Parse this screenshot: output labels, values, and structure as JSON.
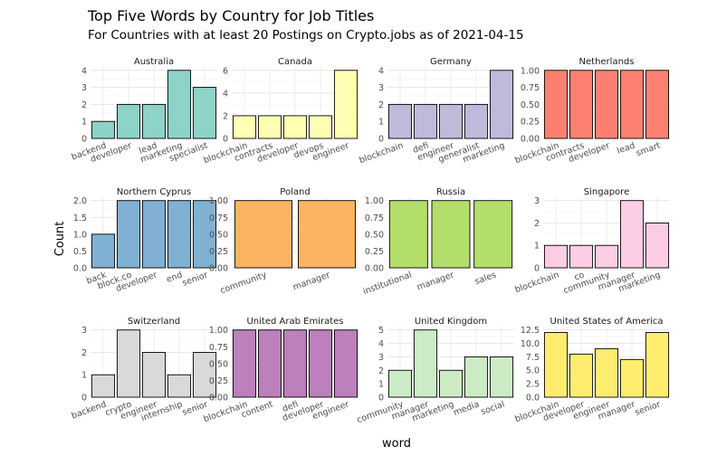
{
  "title": "Top Five Words by Country for Job Titles",
  "subtitle": "For Countries with at least 20 Postings on Crypto.jobs as of 2021-04-15",
  "chart_data": {
    "type": "bar",
    "xlabel": "word",
    "ylabel": "Count",
    "grid": true,
    "facets": [
      {
        "country": "Australia",
        "color": "#8DD3C7",
        "yticks": [
          0,
          1,
          2,
          3,
          4
        ],
        "ylim": [
          0,
          4.2
        ],
        "categories": [
          "backend",
          "developer",
          "lead",
          "marketing",
          "specialist"
        ],
        "values": [
          1,
          2,
          2,
          4,
          3
        ]
      },
      {
        "country": "Canada",
        "color": "#FFFFB3",
        "yticks": [
          0,
          2,
          4,
          6
        ],
        "ylim": [
          0,
          6.3
        ],
        "categories": [
          "blockchain",
          "contracts",
          "developer",
          "devops",
          "engineer"
        ],
        "values": [
          2,
          2,
          2,
          2,
          6
        ]
      },
      {
        "country": "Germany",
        "color": "#BEBADA",
        "yticks": [
          0,
          1,
          2,
          3,
          4
        ],
        "ylim": [
          0,
          4.2
        ],
        "categories": [
          "blockchain",
          "defi",
          "engineer",
          "generalist",
          "marketing"
        ],
        "values": [
          2,
          2,
          2,
          2,
          4
        ]
      },
      {
        "country": "Netherlands",
        "color": "#FB8072",
        "yticks": [
          "0.00",
          "0.25",
          "0.50",
          "0.75",
          "1.00"
        ],
        "ylim": [
          0,
          1.05
        ],
        "categories": [
          "blockchain",
          "contracts",
          "developer",
          "lead",
          "smart"
        ],
        "values": [
          1,
          1,
          1,
          1,
          1
        ]
      },
      {
        "country": "Northern Cyprus",
        "color": "#80B1D3",
        "yticks": [
          "0.0",
          "0.5",
          "1.0",
          "1.5",
          "2.0"
        ],
        "ylim": [
          0,
          2.1
        ],
        "categories": [
          "back",
          "block.co",
          "developer",
          "end",
          "senior"
        ],
        "values": [
          1,
          2,
          2,
          2,
          2
        ]
      },
      {
        "country": "Poland",
        "color": "#FDB462",
        "yticks": [
          "0.00",
          "0.25",
          "0.50",
          "0.75",
          "1.00"
        ],
        "ylim": [
          0,
          1.05
        ],
        "categories": [
          "community",
          "manager"
        ],
        "values": [
          1,
          1
        ]
      },
      {
        "country": "Russia",
        "color": "#B3DE69",
        "yticks": [
          "0.00",
          "0.25",
          "0.50",
          "0.75",
          "1.00"
        ],
        "ylim": [
          0,
          1.05
        ],
        "categories": [
          "institutional",
          "manager",
          "sales"
        ],
        "values": [
          1,
          1,
          1
        ]
      },
      {
        "country": "Singapore",
        "color": "#FCCDE5",
        "yticks": [
          0,
          1,
          2,
          3
        ],
        "ylim": [
          0,
          3.15
        ],
        "categories": [
          "blockchain",
          "co",
          "community",
          "manager",
          "marketing"
        ],
        "values": [
          1,
          1,
          1,
          3,
          2
        ]
      },
      {
        "country": "Switzerland",
        "color": "#D9D9D9",
        "yticks": [
          0,
          1,
          2,
          3
        ],
        "ylim": [
          0,
          3.15
        ],
        "categories": [
          "backend",
          "crypto",
          "engineer",
          "internship",
          "senior"
        ],
        "values": [
          1,
          3,
          2,
          1,
          2
        ]
      },
      {
        "country": "United Arab Emirates",
        "color": "#BC80BD",
        "yticks": [
          "0.00",
          "0.25",
          "0.50",
          "0.75",
          "1.00"
        ],
        "ylim": [
          0,
          1.05
        ],
        "categories": [
          "blockchain",
          "content",
          "defi",
          "developer",
          "engineer"
        ],
        "values": [
          1,
          1,
          1,
          1,
          1
        ]
      },
      {
        "country": "United Kingdom",
        "color": "#CCEBC5",
        "yticks": [
          0,
          1,
          2,
          3,
          4,
          5
        ],
        "ylim": [
          0,
          5.25
        ],
        "categories": [
          "community",
          "manager",
          "marketing",
          "media",
          "social"
        ],
        "values": [
          2,
          5,
          2,
          3,
          3
        ]
      },
      {
        "country": "United States of America",
        "color": "#FFED6F",
        "yticks": [
          "0.0",
          "2.5",
          "5.0",
          "7.5",
          "10.0",
          "12.5"
        ],
        "ylim": [
          0,
          13.1
        ],
        "categories": [
          "blockchain",
          "developer",
          "engineer",
          "manager",
          "senior"
        ],
        "values": [
          12,
          8,
          9,
          7,
          12
        ]
      }
    ]
  }
}
